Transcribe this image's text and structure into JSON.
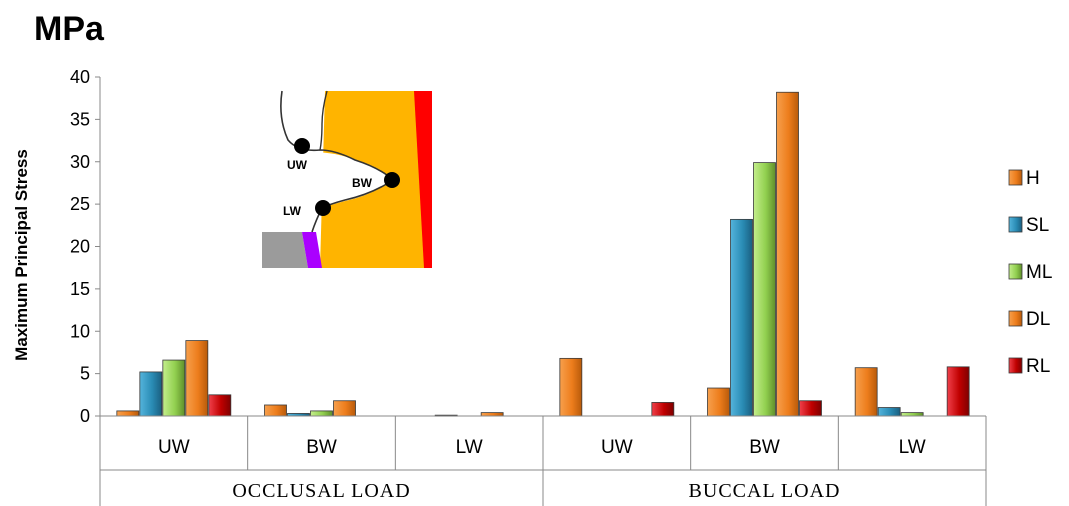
{
  "chart_data": {
    "type": "bar",
    "title": "MPa",
    "ylabel": "Maximum Principal Stress",
    "ylim": [
      0,
      40
    ],
    "yticks": [
      0,
      5,
      10,
      15,
      20,
      25,
      30,
      35,
      40
    ],
    "groups": [
      "OCCLUSAL LOAD",
      "BUCCAL LOAD"
    ],
    "categories": [
      "UW",
      "BW",
      "LW",
      "UW",
      "BW",
      "LW"
    ],
    "series": [
      {
        "name": "H",
        "color": "#ED7D1C",
        "values": [
          0.6,
          1.3,
          0.0,
          6.8,
          3.3,
          5.7
        ]
      },
      {
        "name": "SL",
        "color": "#2A8CB5",
        "values": [
          5.2,
          0.3,
          0.1,
          0.0,
          23.2,
          1.0
        ]
      },
      {
        "name": "ML",
        "color": "#92D050",
        "values": [
          6.6,
          0.6,
          0.0,
          0.0,
          29.9,
          0.4
        ]
      },
      {
        "name": "DL",
        "color": "#ED7D1C",
        "values": [
          8.9,
          1.8,
          0.4,
          0.0,
          38.2,
          0.0
        ]
      },
      {
        "name": "RL",
        "color": "#C00000",
        "values": [
          2.5,
          0.0,
          0.0,
          1.6,
          1.8,
          5.8
        ]
      }
    ],
    "legend": "right",
    "grid": false,
    "inset_labels": [
      "UW",
      "BW",
      "LW"
    ]
  }
}
